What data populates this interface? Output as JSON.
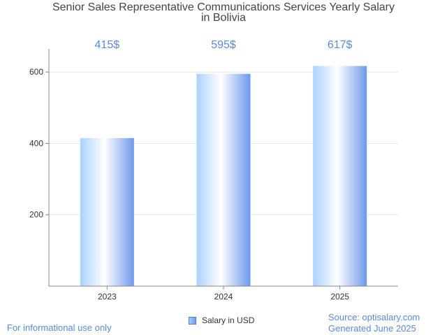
{
  "chart_data": {
    "type": "bar",
    "title_lines": [
      "Senior Sales Representative Communications Services Yearly Salary",
      "in Bolivia"
    ],
    "categories": [
      "2023",
      "2024",
      "2025"
    ],
    "series": [
      {
        "name": "Salary in USD",
        "values": [
          415,
          595,
          617
        ]
      }
    ],
    "data_labels": [
      "415$",
      "595$",
      "617$"
    ],
    "ylim": [
      0,
      665
    ],
    "yticks": [
      200,
      400,
      600
    ],
    "grid": true,
    "legend": "bottom-center"
  },
  "colors": {
    "bar_light": "#dff0ff",
    "bar_mid": "#a9d2ff",
    "bar_dark": "#6e98ea",
    "label": "#5b8ad6",
    "axis": "#888888",
    "grid": "#e6e6e6"
  },
  "footer": {
    "note": "For informational use only",
    "source": "Source: optisalary.com",
    "generated": "Generated June 2025"
  }
}
